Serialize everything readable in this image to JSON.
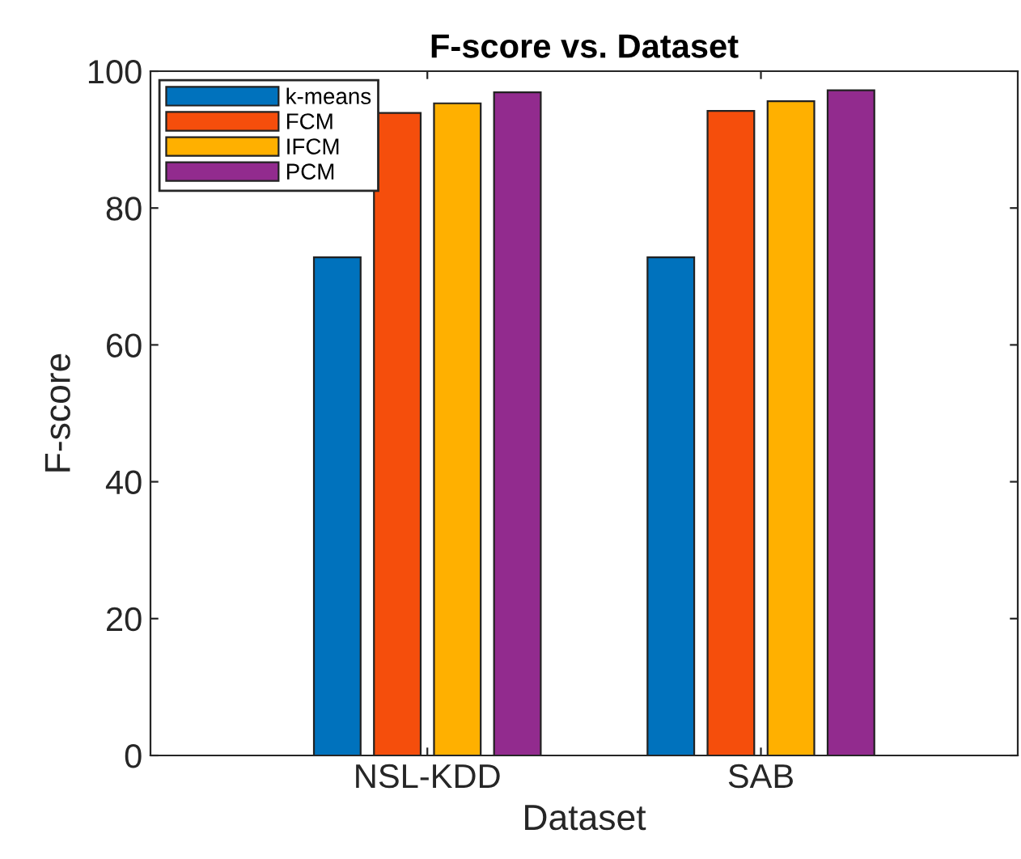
{
  "chart_data": {
    "type": "bar",
    "title": "F-score vs. Dataset",
    "xlabel": "Dataset",
    "ylabel": "F-score",
    "categories": [
      "NSL-KDD",
      "SAB"
    ],
    "series": [
      {
        "name": "k-means",
        "color": "#0072bd",
        "values": [
          72.8,
          72.8
        ]
      },
      {
        "name": "FCM",
        "color": "#f54e0c",
        "values": [
          93.9,
          94.2
        ]
      },
      {
        "name": "IFCM",
        "color": "#ffb000",
        "values": [
          95.3,
          95.6
        ]
      },
      {
        "name": "PCM",
        "color": "#922b8e",
        "values": [
          96.9,
          97.2
        ]
      }
    ],
    "ylim": [
      0,
      100
    ],
    "yticks": [
      0,
      20,
      40,
      60,
      80,
      100
    ],
    "legend": "top left",
    "grid": false
  }
}
